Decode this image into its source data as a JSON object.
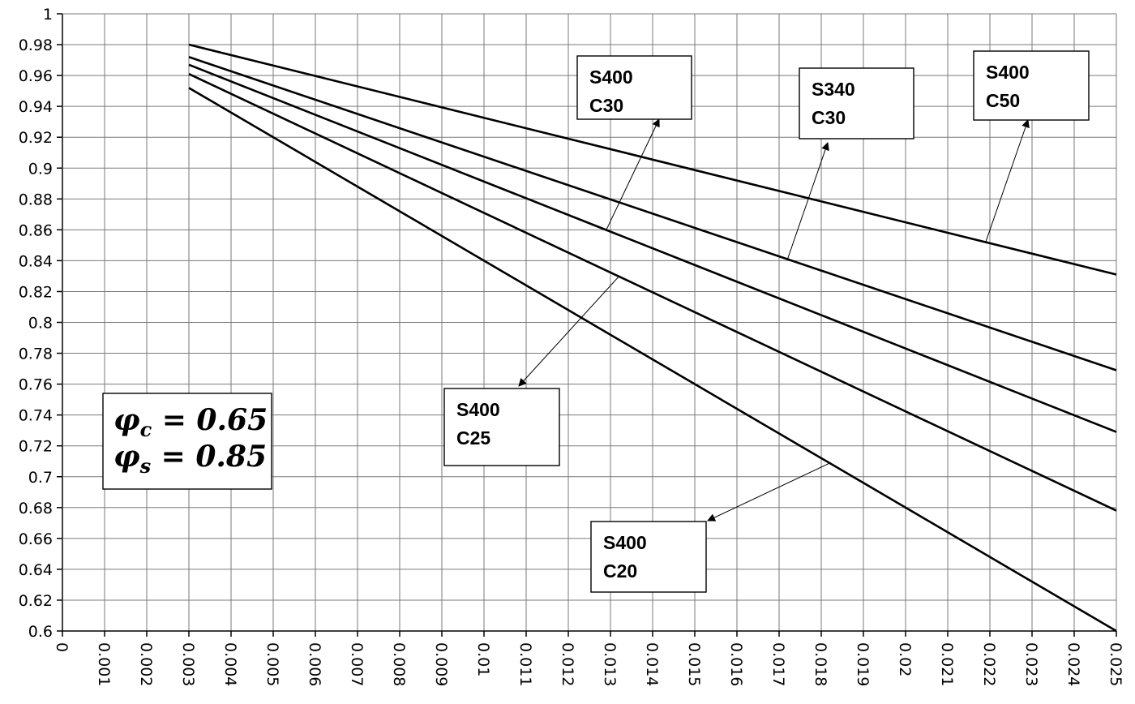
{
  "chart_data": {
    "type": "line",
    "title": "",
    "xlabel": "",
    "ylabel": "",
    "xlim": [
      0,
      0.025
    ],
    "ylim": [
      0.6,
      1
    ],
    "grid": true,
    "x_ticks": [
      "0",
      "0.001",
      "0.002",
      "0.003",
      "0.004",
      "0.005",
      "0.006",
      "0.007",
      "0.008",
      "0.009",
      "0.01",
      "0.011",
      "0.012",
      "0.013",
      "0.014",
      "0.015",
      "0.016",
      "0.017",
      "0.018",
      "0.019",
      "0.02",
      "0.021",
      "0.022",
      "0.023",
      "0.024",
      "0.025"
    ],
    "y_ticks": [
      "0.6",
      "0.62",
      "0.64",
      "0.66",
      "0.68",
      "0.7",
      "0.72",
      "0.74",
      "0.76",
      "0.78",
      "0.8",
      "0.82",
      "0.84",
      "0.86",
      "0.88",
      "0.9",
      "0.92",
      "0.94",
      "0.96",
      "0.98",
      "1"
    ],
    "series": [
      {
        "name": "S400 C50",
        "points": [
          [
            0.003,
            0.98
          ],
          [
            0.025,
            0.831
          ]
        ]
      },
      {
        "name": "S340 C30",
        "points": [
          [
            0.003,
            0.972
          ],
          [
            0.025,
            0.769
          ]
        ]
      },
      {
        "name": "S400 C30",
        "points": [
          [
            0.003,
            0.967
          ],
          [
            0.025,
            0.729
          ]
        ]
      },
      {
        "name": "S400 C25",
        "points": [
          [
            0.003,
            0.961
          ],
          [
            0.025,
            0.678
          ]
        ]
      },
      {
        "name": "S400 C20",
        "points": [
          [
            0.003,
            0.952
          ],
          [
            0.025,
            0.6
          ]
        ]
      }
    ],
    "annotations": [
      {
        "lines": [
          "S400",
          "C30"
        ],
        "series": "S400 C30"
      },
      {
        "lines": [
          "S340",
          "C30"
        ],
        "series": "S340 C30"
      },
      {
        "lines": [
          "S400",
          "C50"
        ],
        "series": "S400 C50"
      },
      {
        "lines": [
          "S400",
          "C25"
        ],
        "series": "S400 C25"
      },
      {
        "lines": [
          "S400",
          "C20"
        ],
        "series": "S400 C20"
      }
    ],
    "info_box": {
      "line1": {
        "symbol": "φ",
        "sub": "c",
        "rest": " = 0.65"
      },
      "line2": {
        "symbol": "φ",
        "sub": "s",
        "rest": " = 0.85"
      }
    }
  }
}
